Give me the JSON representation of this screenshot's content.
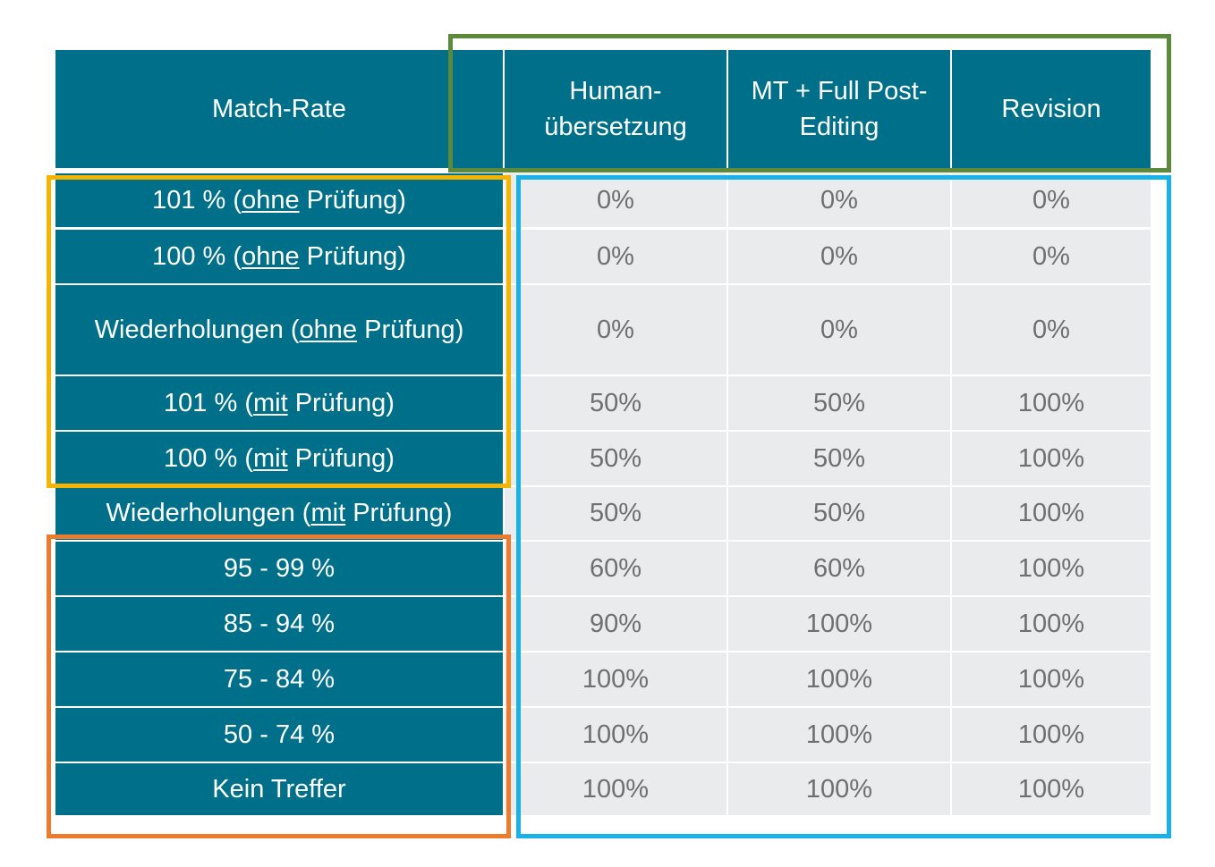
{
  "header": {
    "match_rate": "Match-Rate",
    "columns": [
      "Human-\nübersetzung",
      "MT + Full Post-\nEditing",
      "Revision"
    ]
  },
  "rows": [
    {
      "pre": "101 % (",
      "u": "ohne",
      "post": " Prüfung)",
      "values": [
        "0%",
        "0%",
        "0%"
      ]
    },
    {
      "pre": "100 % (",
      "u": "ohne",
      "post": " Prüfung)",
      "values": [
        "0%",
        "0%",
        "0%"
      ]
    },
    {
      "pre": "Wiederholungen (",
      "u": "ohne",
      "post": " Prüfung)",
      "values": [
        "0%",
        "0%",
        "0%"
      ]
    },
    {
      "pre": "101 % (",
      "u": "mit",
      "post": " Prüfung)",
      "values": [
        "50%",
        "50%",
        "100%"
      ]
    },
    {
      "pre": "100 % (",
      "u": "mit",
      "post": " Prüfung)",
      "values": [
        "50%",
        "50%",
        "100%"
      ]
    },
    {
      "pre": "Wiederholungen (",
      "u": "mit",
      "post": " Prüfung)",
      "values": [
        "50%",
        "50%",
        "100%"
      ]
    },
    {
      "pre": "95 - 99 %",
      "u": "",
      "post": "",
      "values": [
        "60%",
        "60%",
        "100%"
      ]
    },
    {
      "pre": "85 - 94 %",
      "u": "",
      "post": "",
      "values": [
        "90%",
        "100%",
        "100%"
      ]
    },
    {
      "pre": "75 - 84 %",
      "u": "",
      "post": "",
      "values": [
        "100%",
        "100%",
        "100%"
      ]
    },
    {
      "pre": "50 - 74 %",
      "u": "",
      "post": "",
      "values": [
        "100%",
        "100%",
        "100%"
      ]
    },
    {
      "pre": "Kein Treffer",
      "u": "",
      "post": "",
      "values": [
        "100%",
        "100%",
        "100%"
      ]
    }
  ],
  "colors": {
    "header_bg": "#00708a",
    "value_bg": "#e9ebed",
    "green_frame": "#5a8a3a",
    "yellow_frame": "#f5b400",
    "orange_frame": "#ec7a2f",
    "blue_frame": "#1ab0e8"
  }
}
